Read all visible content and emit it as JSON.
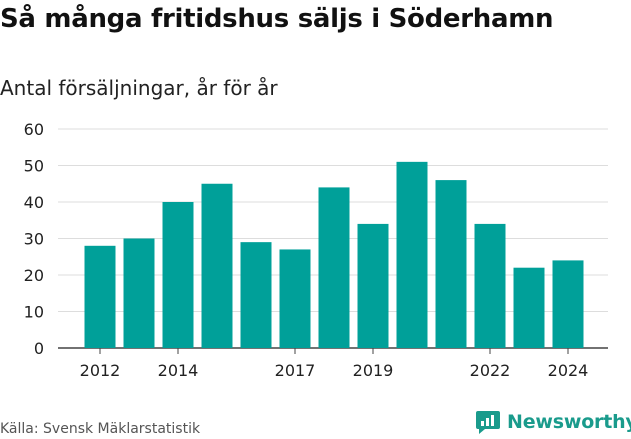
{
  "header": {
    "title": "Så många fritidshus säljs i Söderhamn",
    "subtitle": "Antal försäljningar, år för år"
  },
  "footer": {
    "source": "Källa: Svensk Mäklarstatistik",
    "logo_text": "Newsworthy"
  },
  "colors": {
    "bar": "#00a099",
    "grid": "#dddddd",
    "logo": "#1a9b8c"
  },
  "chart_data": {
    "type": "bar",
    "categories": [
      "2012",
      "2013",
      "2014",
      "2015",
      "2016",
      "2017",
      "2018",
      "2019",
      "2020",
      "2021",
      "2022",
      "2023",
      "2024"
    ],
    "values": [
      28,
      30,
      40,
      45,
      29,
      27,
      44,
      34,
      51,
      46,
      34,
      22,
      24
    ],
    "x_tick_labels": [
      "2012",
      "2014",
      "2017",
      "2019",
      "2022",
      "2024"
    ],
    "y_ticks": [
      0,
      10,
      20,
      30,
      40,
      50,
      60
    ],
    "ylim": [
      0,
      60
    ],
    "grid": true,
    "legend": "none"
  }
}
